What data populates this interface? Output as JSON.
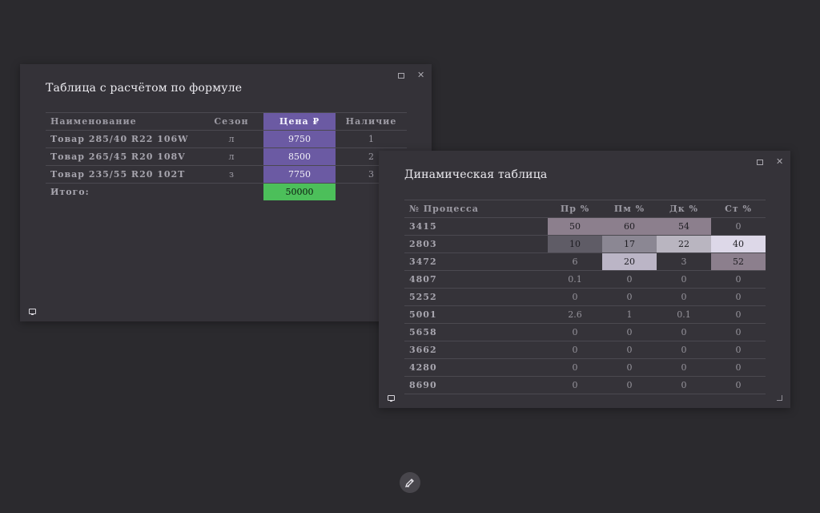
{
  "formula_panel": {
    "title": "Таблица с расчётом по формуле",
    "columns": [
      "Наименование",
      "Сезон",
      "Цена ₽",
      "Наличие"
    ],
    "rows": [
      {
        "name": "Товар 285/40 R22 106W",
        "season": "л",
        "price": "9750",
        "stock": "1"
      },
      {
        "name": "Товар 265/45 R20 108V",
        "season": "л",
        "price": "8500",
        "stock": "2"
      },
      {
        "name": "Товар 235/55 R20 102T",
        "season": "з",
        "price": "7750",
        "stock": "3"
      }
    ],
    "total_label": "Итого:",
    "total_value": "50000",
    "colors": {
      "price_column": "#6b5aa3",
      "total_highlight": "#4cbf5a"
    }
  },
  "dynamic_panel": {
    "title": "Динамическая таблица",
    "columns": [
      "№ Процесса",
      "Пр %",
      "Пм %",
      "Дк %",
      "Ст %"
    ],
    "rows": [
      {
        "id": "3415",
        "cells": [
          {
            "v": "50",
            "bg": "#8c7f8d"
          },
          {
            "v": "60",
            "bg": "#8c7f8d"
          },
          {
            "v": "54",
            "bg": "#8c7f8d"
          },
          {
            "v": "0",
            "bg": ""
          }
        ]
      },
      {
        "id": "2803",
        "cells": [
          {
            "v": "10",
            "bg": "#5f5c66"
          },
          {
            "v": "17",
            "bg": "#8b8793"
          },
          {
            "v": "22",
            "bg": "#b9b5c0"
          },
          {
            "v": "40",
            "bg": "#ddd8e8"
          }
        ]
      },
      {
        "id": "3472",
        "cells": [
          {
            "v": "6",
            "bg": ""
          },
          {
            "v": "20",
            "bg": "#bbb5c6"
          },
          {
            "v": "3",
            "bg": ""
          },
          {
            "v": "52",
            "bg": "#8c7f8d"
          }
        ]
      },
      {
        "id": "4807",
        "cells": [
          {
            "v": "0.1",
            "bg": ""
          },
          {
            "v": "0",
            "bg": ""
          },
          {
            "v": "0",
            "bg": ""
          },
          {
            "v": "0",
            "bg": ""
          }
        ]
      },
      {
        "id": "5252",
        "cells": [
          {
            "v": "0",
            "bg": ""
          },
          {
            "v": "0",
            "bg": ""
          },
          {
            "v": "0",
            "bg": ""
          },
          {
            "v": "0",
            "bg": ""
          }
        ]
      },
      {
        "id": "5001",
        "cells": [
          {
            "v": "2.6",
            "bg": ""
          },
          {
            "v": "1",
            "bg": ""
          },
          {
            "v": "0.1",
            "bg": ""
          },
          {
            "v": "0",
            "bg": ""
          }
        ]
      },
      {
        "id": "5658",
        "cells": [
          {
            "v": "0",
            "bg": ""
          },
          {
            "v": "0",
            "bg": ""
          },
          {
            "v": "0",
            "bg": ""
          },
          {
            "v": "0",
            "bg": ""
          }
        ]
      },
      {
        "id": "3662",
        "cells": [
          {
            "v": "0",
            "bg": ""
          },
          {
            "v": "0",
            "bg": ""
          },
          {
            "v": "0",
            "bg": ""
          },
          {
            "v": "0",
            "bg": ""
          }
        ]
      },
      {
        "id": "4280",
        "cells": [
          {
            "v": "0",
            "bg": ""
          },
          {
            "v": "0",
            "bg": ""
          },
          {
            "v": "0",
            "bg": ""
          },
          {
            "v": "0",
            "bg": ""
          }
        ]
      },
      {
        "id": "8690",
        "cells": [
          {
            "v": "0",
            "bg": ""
          },
          {
            "v": "0",
            "bg": ""
          },
          {
            "v": "0",
            "bg": ""
          },
          {
            "v": "0",
            "bg": ""
          }
        ]
      }
    ]
  },
  "window_controls": {
    "close_glyph": "✕"
  },
  "icons": {
    "minimize": "minimize-icon",
    "close": "close-icon",
    "monitor": "monitor-icon",
    "resize": "resize-grip-icon",
    "edit": "pen-icon"
  }
}
